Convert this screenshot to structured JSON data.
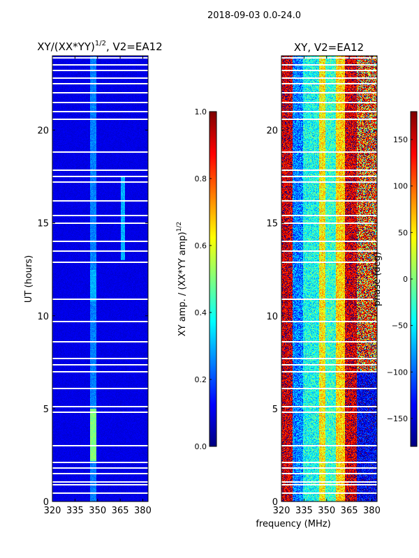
{
  "suptitle": "2018-09-03 0.0-24.0",
  "chart_data": [
    {
      "type": "heatmap",
      "title": "XY/(XX*YY)^1/2, V2=EA12",
      "title_main": "XY/(XX*YY)",
      "title_sup": "1/2",
      "title_rest": ", V2=EA12",
      "xlabel": "",
      "ylabel": "UT (hours)",
      "xlim": [
        320,
        383.5
      ],
      "ylim": [
        0,
        24
      ],
      "xticks": [
        "320",
        "335",
        "350",
        "365",
        "380"
      ],
      "yticks": [
        "0",
        "5",
        "10",
        "15",
        "20"
      ],
      "colorbar": {
        "label": "XY amp. / (XX*YY amp)",
        "label_sup": "1/2",
        "range": [
          0,
          1
        ],
        "ticks": [
          "0.0",
          "0.2",
          "0.4",
          "0.6",
          "0.8",
          "1.0"
        ],
        "colormap": "jet"
      },
      "baseline_value": 0.1,
      "features": [
        {
          "freq_range": [
            345,
            349
          ],
          "time_range": [
            0,
            24
          ],
          "value": 0.25
        },
        {
          "freq_range": [
            345,
            349
          ],
          "time_range": [
            2.2,
            5
          ],
          "value": 0.5
        },
        {
          "freq_range": [
            345,
            349
          ],
          "time_range": [
            10.8,
            12.5
          ],
          "value": 0.3
        },
        {
          "freq_range": [
            365,
            368
          ],
          "time_range": [
            13,
            17.5
          ],
          "value": 0.3
        }
      ]
    },
    {
      "type": "heatmap",
      "title": "XY, V2=EA12",
      "xlabel": "frequency (MHz)",
      "ylabel": "",
      "xlim": [
        320,
        383.5
      ],
      "ylim": [
        0,
        24
      ],
      "xticks": [
        "320",
        "335",
        "350",
        "365",
        "380"
      ],
      "yticks": [
        "0",
        "5",
        "10",
        "15",
        "20"
      ],
      "colorbar": {
        "label": "phase (deg)",
        "range": [
          -180,
          180
        ],
        "ticks": [
          "−150",
          "−100",
          "−50",
          "0",
          "50",
          "100",
          "150"
        ],
        "colormap": "jet"
      },
      "phase_profile_deg": [
        {
          "freq_range": [
            320,
            327
          ],
          "value": 150
        },
        {
          "freq_range": [
            327,
            334
          ],
          "value": -90
        },
        {
          "freq_range": [
            334,
            345
          ],
          "value": -40
        },
        {
          "freq_range": [
            345,
            349
          ],
          "value": 50
        },
        {
          "freq_range": [
            349,
            356
          ],
          "value": -30
        },
        {
          "freq_range": [
            356,
            362
          ],
          "value": 60
        },
        {
          "freq_range": [
            362,
            370
          ],
          "value": 150
        },
        {
          "freq_range": [
            370,
            383.5
          ],
          "value": -140
        }
      ]
    }
  ],
  "flagged_hours": [
    0.45,
    0.9,
    1.05,
    1.5,
    1.8,
    2.1,
    3.0,
    4.8,
    5.1,
    6.1,
    7.0,
    7.35,
    7.7,
    8.6,
    9.7,
    10.9,
    12.9,
    13.5,
    14.0,
    15.0,
    15.4,
    16.2,
    17.2,
    17.5,
    17.85,
    18.8,
    20.6,
    21.0,
    21.5,
    22.0,
    22.5,
    22.8,
    23.2,
    23.5,
    23.9
  ]
}
